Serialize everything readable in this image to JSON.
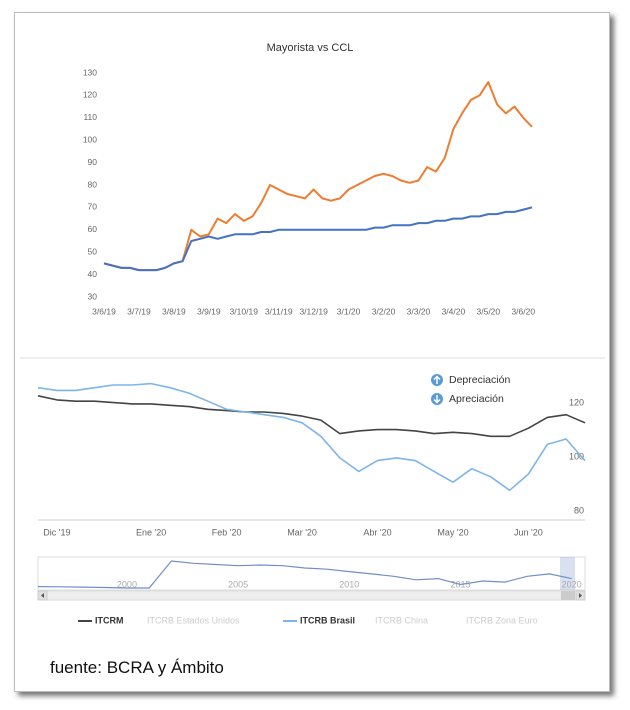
{
  "chart_data": [
    {
      "type": "line",
      "title": "Mayorista vs CCL",
      "categories": [
        "3/6/19",
        null,
        null,
        null,
        "3/7/19",
        null,
        null,
        null,
        "3/8/19",
        null,
        null,
        null,
        "3/9/19",
        null,
        null,
        null,
        "3/10/19",
        null,
        null,
        null,
        "3/11/19",
        null,
        null,
        null,
        "3/12/19",
        null,
        null,
        null,
        "3/1/20",
        null,
        null,
        null,
        "3/2/20",
        null,
        null,
        null,
        "3/3/20",
        null,
        null,
        null,
        "3/4/20",
        null,
        null,
        null,
        "3/5/20",
        null,
        null,
        null,
        "3/6/20",
        null
      ],
      "series": [
        {
          "color": "#ed7d31",
          "values": [
            45,
            44,
            43,
            43,
            42,
            42,
            42,
            43,
            45,
            46,
            60,
            57,
            58,
            65,
            63,
            67,
            64,
            66,
            72,
            80,
            78,
            76,
            75,
            74,
            78,
            74,
            73,
            74,
            78,
            80,
            82,
            84,
            85,
            84,
            82,
            81,
            82,
            88,
            86,
            92,
            105,
            112,
            118,
            120,
            126,
            116,
            112,
            115,
            110,
            106
          ]
        },
        {
          "color": "#4472c4",
          "values": [
            45,
            44,
            43,
            43,
            42,
            42,
            42,
            43,
            45,
            46,
            55,
            56,
            57,
            56,
            57,
            58,
            58,
            58,
            59,
            59,
            60,
            60,
            60,
            60,
            60,
            60,
            60,
            60,
            60,
            60,
            60,
            61,
            61,
            62,
            62,
            62,
            63,
            63,
            64,
            64,
            65,
            65,
            66,
            66,
            67,
            67,
            68,
            68,
            69,
            70
          ]
        }
      ],
      "ylim": [
        30,
        130
      ],
      "yticks": [
        30,
        40,
        50,
        60,
        70,
        80,
        90,
        100,
        110,
        120,
        130
      ],
      "grid": false
    },
    {
      "type": "line",
      "categories": [
        null,
        "Dic '19",
        null,
        null,
        null,
        null,
        "Ene '20",
        null,
        null,
        null,
        "Feb '20",
        null,
        null,
        null,
        "Mar '20",
        null,
        null,
        null,
        "Abr '20",
        null,
        null,
        null,
        "May '20",
        null,
        null,
        null,
        "Jun '20",
        null,
        null,
        null
      ],
      "series": [
        {
          "name": "ITCRM",
          "color": "#444444",
          "visible": true,
          "values": [
            125,
            123.5,
            123,
            123,
            122.5,
            122,
            122,
            121.5,
            121,
            120,
            119.5,
            119,
            119,
            118.5,
            117.5,
            116,
            111,
            112,
            112.5,
            112.5,
            112,
            111,
            111.5,
            111,
            110,
            110,
            113,
            117,
            118,
            115
          ]
        },
        {
          "name": "ITCRB Estados Unidos",
          "visible": false
        },
        {
          "name": "ITCRB Brasil",
          "color": "#7cb5ec",
          "visible": true,
          "values": [
            128,
            127,
            127,
            128,
            129,
            129,
            129.5,
            128,
            126,
            123,
            120,
            119,
            118,
            117,
            115,
            110,
            102,
            97,
            101,
            102,
            101,
            97,
            93,
            98,
            95,
            90,
            96,
            107,
            109,
            101
          ]
        },
        {
          "name": "ITCRB China",
          "visible": false
        },
        {
          "name": "ITCRB Zona Euro",
          "visible": false
        }
      ],
      "ylim": [
        79,
        139
      ],
      "yticks": [
        80,
        100,
        120
      ],
      "grid": false,
      "annotations": [
        "Depreciación",
        "Apreciación"
      ]
    },
    {
      "type": "navigator",
      "x": [
        1996,
        1997,
        1998,
        1999,
        2000,
        2001,
        2002,
        2003,
        2004,
        2005,
        2006,
        2007,
        2008,
        2009,
        2010,
        2011,
        2012,
        2013,
        2014,
        2015,
        2016,
        2017,
        2018,
        2019,
        2020
      ],
      "values": [
        96,
        95,
        94,
        92,
        90,
        90,
        205,
        195,
        190,
        185,
        188,
        185,
        175,
        170,
        160,
        150,
        140,
        125,
        130,
        105,
        120,
        115,
        140,
        150,
        130
      ],
      "color": "#6f8fc6",
      "xlim": [
        1996,
        2020.6
      ],
      "xticks": [
        2000,
        2005,
        2010,
        2015,
        2020
      ]
    }
  ],
  "footer": "fuente: BCRA y Ámbito"
}
